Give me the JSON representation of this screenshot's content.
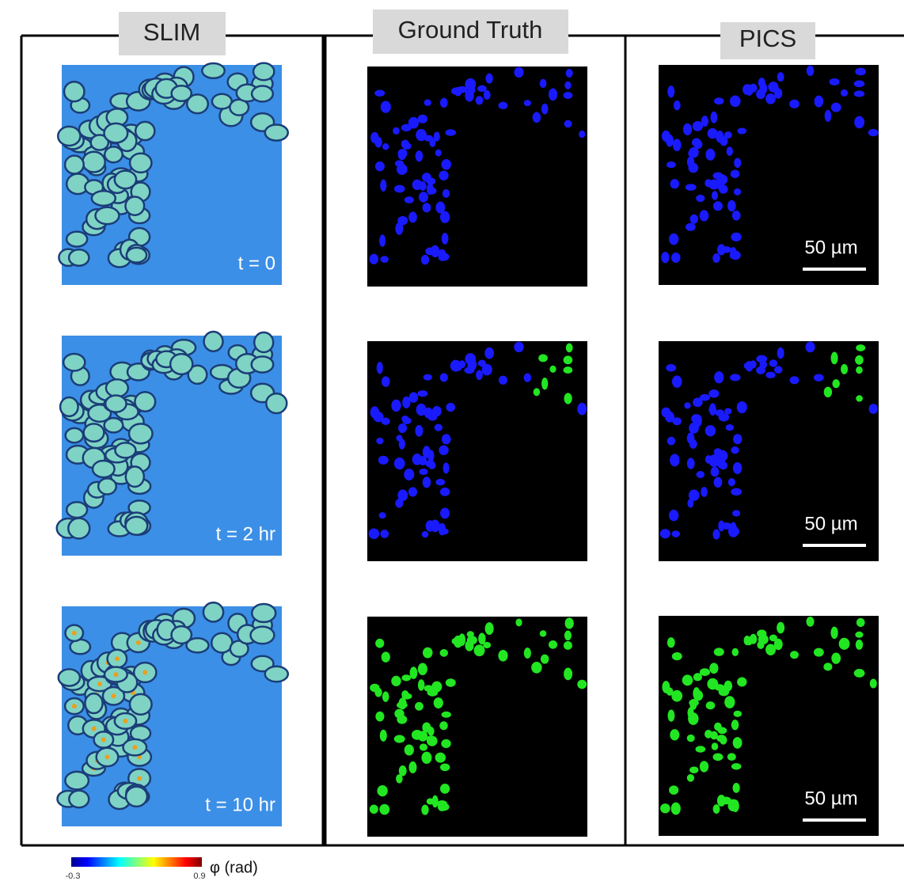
{
  "columns": [
    {
      "title": "SLIM"
    },
    {
      "title": "Ground Truth"
    },
    {
      "title": "PICS"
    }
  ],
  "time_labels": [
    "t = 0",
    "t = 2 hr",
    "t = 10 hr"
  ],
  "scale_bars": [
    "50 µm",
    "50 µm",
    "50 µm"
  ],
  "colorbar": {
    "min": "-0.3",
    "max": "0.9",
    "label": "φ  (rad)"
  }
}
